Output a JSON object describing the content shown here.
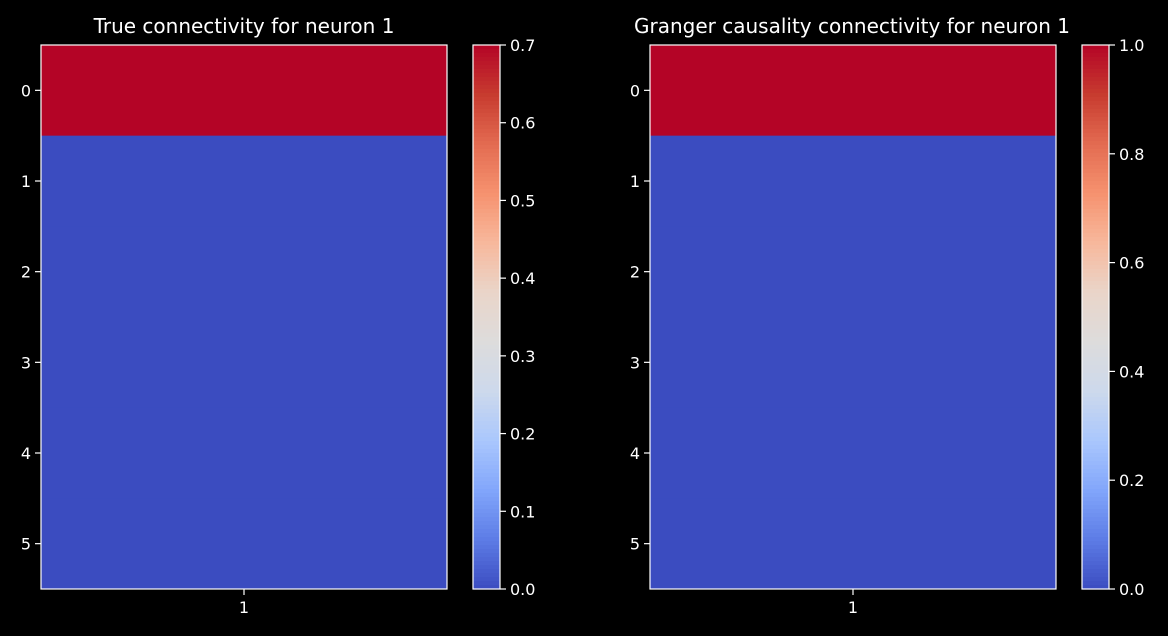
{
  "chart_data": [
    {
      "type": "heatmap",
      "title": "True connectivity for neuron 1",
      "xlabel": "",
      "ylabel": "",
      "x_tick_labels": [
        "1"
      ],
      "y_tick_labels": [
        "0",
        "1",
        "2",
        "3",
        "4",
        "5"
      ],
      "values": [
        [
          0.7
        ],
        [
          0.0
        ],
        [
          0.0
        ],
        [
          0.0
        ],
        [
          0.0
        ],
        [
          0.0
        ]
      ],
      "colormap": "coolwarm",
      "colorbar": {
        "vmin": 0.0,
        "vmax": 0.7,
        "ticks": [
          0.0,
          0.1,
          0.2,
          0.3,
          0.4,
          0.5,
          0.6,
          0.7
        ],
        "tick_labels": [
          "0.0",
          "0.1",
          "0.2",
          "0.3",
          "0.4",
          "0.5",
          "0.6",
          "0.7"
        ]
      }
    },
    {
      "type": "heatmap",
      "title": "Granger causality connectivity for neuron 1",
      "xlabel": "",
      "ylabel": "",
      "x_tick_labels": [
        "1"
      ],
      "y_tick_labels": [
        "0",
        "1",
        "2",
        "3",
        "4",
        "5"
      ],
      "values": [
        [
          1.0
        ],
        [
          0.0
        ],
        [
          0.0
        ],
        [
          0.0
        ],
        [
          0.0
        ],
        [
          0.0
        ]
      ],
      "colormap": "coolwarm",
      "colorbar": {
        "vmin": 0.0,
        "vmax": 1.0,
        "ticks": [
          0.0,
          0.2,
          0.4,
          0.6,
          0.8,
          1.0
        ],
        "tick_labels": [
          "0.0",
          "0.2",
          "0.4",
          "0.6",
          "0.8",
          "1.0"
        ]
      }
    }
  ],
  "colors": {
    "background": "#000000",
    "foreground": "#ffffff",
    "colormap_stops": [
      "#3b4cc0",
      "#5d7ce6",
      "#82a6fb",
      "#aac7fd",
      "#cdd9ec",
      "#dddcdc",
      "#ead5c9",
      "#f7b89c",
      "#f6926f",
      "#e36b51",
      "#c73b2f",
      "#b40426"
    ]
  }
}
